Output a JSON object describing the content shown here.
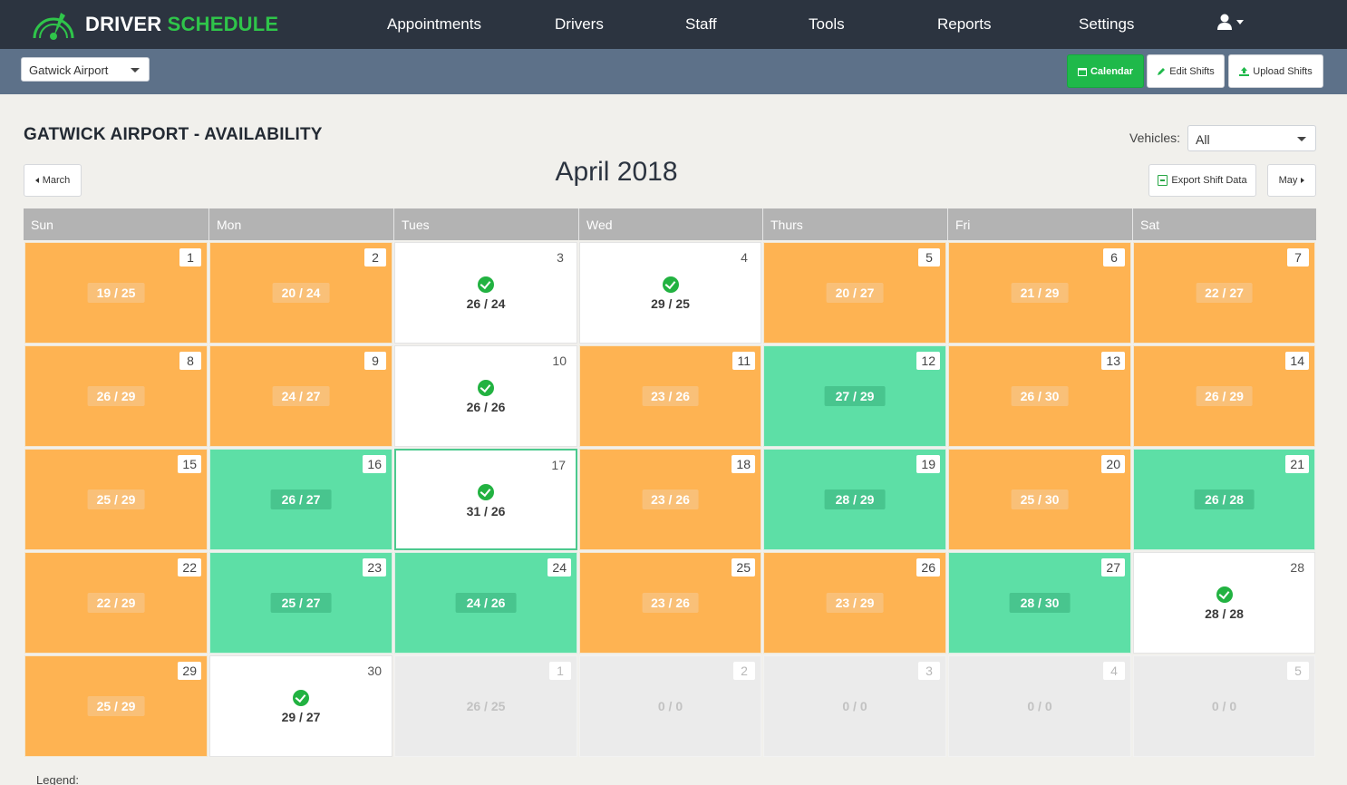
{
  "brand": {
    "word1": "DRIVER",
    "word2": "SCHEDULE"
  },
  "nav": {
    "items": [
      "Appointments",
      "Drivers",
      "Staff",
      "Tools",
      "Reports",
      "Settings"
    ]
  },
  "subbar": {
    "location_value": "Gatwick Airport",
    "calendar_label": "Calendar",
    "edit_label": "Edit Shifts",
    "upload_label": "Upload Shifts"
  },
  "page": {
    "title": "GATWICK AIRPORT - AVAILABILITY",
    "vehicles_label": "Vehicles:",
    "vehicles_value": "All",
    "month_title": "April 2018",
    "prev_label": "March",
    "export_label": "Export Shift Data",
    "next_label": "May",
    "legend_label": "Legend:"
  },
  "calendar": {
    "weekdays": [
      "Sun",
      "Mon",
      "Tues",
      "Wed",
      "Thurs",
      "Fri",
      "Sat"
    ],
    "weeks": [
      [
        {
          "day": "1",
          "value": "19 / 25",
          "status": "orange"
        },
        {
          "day": "2",
          "value": "20 / 24",
          "status": "orange"
        },
        {
          "day": "3",
          "value": "26 / 24",
          "status": "white"
        },
        {
          "day": "4",
          "value": "29 / 25",
          "status": "white"
        },
        {
          "day": "5",
          "value": "20 / 27",
          "status": "orange"
        },
        {
          "day": "6",
          "value": "21 / 29",
          "status": "orange"
        },
        {
          "day": "7",
          "value": "22 / 27",
          "status": "orange"
        }
      ],
      [
        {
          "day": "8",
          "value": "26 / 29",
          "status": "orange"
        },
        {
          "day": "9",
          "value": "24 / 27",
          "status": "orange"
        },
        {
          "day": "10",
          "value": "26 / 26",
          "status": "white"
        },
        {
          "day": "11",
          "value": "23 / 26",
          "status": "orange"
        },
        {
          "day": "12",
          "value": "27 / 29",
          "status": "green"
        },
        {
          "day": "13",
          "value": "26 / 30",
          "status": "orange"
        },
        {
          "day": "14",
          "value": "26 / 29",
          "status": "orange"
        }
      ],
      [
        {
          "day": "15",
          "value": "25 / 29",
          "status": "orange"
        },
        {
          "day": "16",
          "value": "26 / 27",
          "status": "green"
        },
        {
          "day": "17",
          "value": "31 / 26",
          "status": "white",
          "today": true
        },
        {
          "day": "18",
          "value": "23 / 26",
          "status": "orange"
        },
        {
          "day": "19",
          "value": "28 / 29",
          "status": "green"
        },
        {
          "day": "20",
          "value": "25 / 30",
          "status": "orange"
        },
        {
          "day": "21",
          "value": "26 / 28",
          "status": "green"
        }
      ],
      [
        {
          "day": "22",
          "value": "22 / 29",
          "status": "orange"
        },
        {
          "day": "23",
          "value": "25 / 27",
          "status": "green"
        },
        {
          "day": "24",
          "value": "24 / 26",
          "status": "green"
        },
        {
          "day": "25",
          "value": "23 / 26",
          "status": "orange"
        },
        {
          "day": "26",
          "value": "23 / 29",
          "status": "orange"
        },
        {
          "day": "27",
          "value": "28 / 30",
          "status": "green"
        },
        {
          "day": "28",
          "value": "28 / 28",
          "status": "white"
        }
      ],
      [
        {
          "day": "29",
          "value": "25 / 29",
          "status": "orange"
        },
        {
          "day": "30",
          "value": "29 / 27",
          "status": "white"
        },
        {
          "day": "1",
          "value": "26 / 25",
          "status": "grey"
        },
        {
          "day": "2",
          "value": "0 / 0",
          "status": "grey"
        },
        {
          "day": "3",
          "value": "0 / 0",
          "status": "grey"
        },
        {
          "day": "4",
          "value": "0 / 0",
          "status": "grey"
        },
        {
          "day": "5",
          "value": "0 / 0",
          "status": "grey"
        }
      ]
    ]
  },
  "colors": {
    "nav_bg": "#2c3440",
    "subbar_bg": "#5d7189",
    "brand_green": "#2fc54a",
    "understaffed": "#feb352",
    "ok": "#5ddfa6",
    "met": "#ffffff",
    "out_of_month": "#ebebeb",
    "check_green": "#22b241"
  },
  "icons": {
    "logo": "steering-gauge-icon",
    "user": "user-icon",
    "calendar": "calendar-icon",
    "edit": "pencil-icon",
    "upload": "upload-icon",
    "export": "excel-file-icon",
    "check": "check-circle-icon"
  }
}
